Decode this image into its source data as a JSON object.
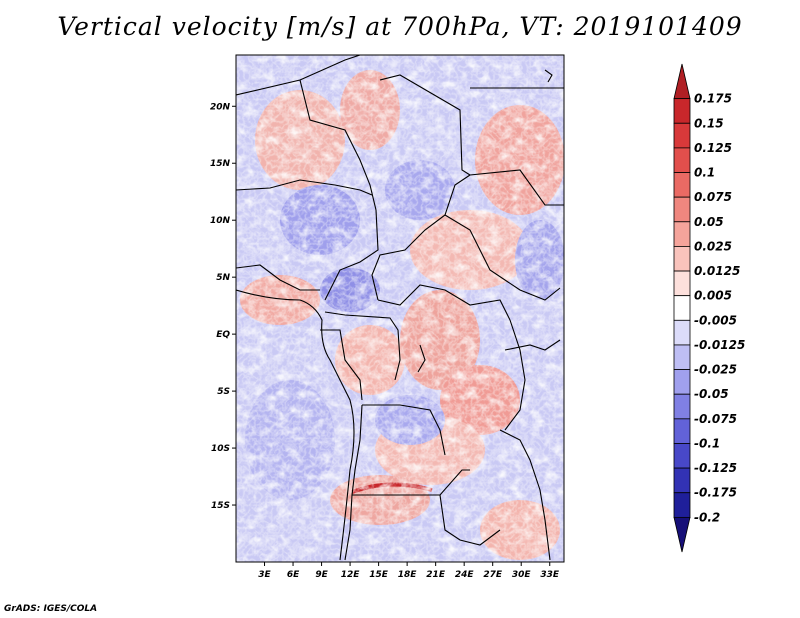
{
  "title": "Vertical velocity [m/s] at 700hPa, VT: 2019101409",
  "credit": "GrADS: IGES/COLA",
  "lat_ticks": [
    {
      "value": 20,
      "label": "20N"
    },
    {
      "value": 15,
      "label": "15N"
    },
    {
      "value": 10,
      "label": "10N"
    },
    {
      "value": 5,
      "label": "5N"
    },
    {
      "value": 0,
      "label": "EQ"
    },
    {
      "value": -5,
      "label": "5S"
    },
    {
      "value": -10,
      "label": "10S"
    },
    {
      "value": -15,
      "label": "15S"
    }
  ],
  "lon_ticks": [
    {
      "value": 3,
      "label": "3E"
    },
    {
      "value": 6,
      "label": "6E"
    },
    {
      "value": 9,
      "label": "9E"
    },
    {
      "value": 12,
      "label": "12E"
    },
    {
      "value": 15,
      "label": "15E"
    },
    {
      "value": 18,
      "label": "18E"
    },
    {
      "value": 21,
      "label": "21E"
    },
    {
      "value": 24,
      "label": "24E"
    },
    {
      "value": 27,
      "label": "27E"
    },
    {
      "value": 30,
      "label": "30E"
    },
    {
      "value": 33,
      "label": "33E"
    }
  ],
  "lon_range": [
    0,
    34.5
  ],
  "lat_range": [
    -20,
    24.5
  ],
  "colorbar": {
    "labels": [
      "0.175",
      "0.15",
      "0.125",
      "0.1",
      "0.075",
      "0.05",
      "0.025",
      "0.0125",
      "0.005",
      "-0.005",
      "-0.0125",
      "-0.025",
      "-0.05",
      "-0.075",
      "-0.1",
      "-0.125",
      "-0.175",
      "-0.2"
    ],
    "colors": [
      "#b01f24",
      "#c8272b",
      "#d8393a",
      "#e24f4c",
      "#ea6a64",
      "#f0877f",
      "#f5a49b",
      "#f9c3bc",
      "#fde0dc",
      "#ffffff",
      "#dcdcfa",
      "#bebef4",
      "#a0a0ee",
      "#8080e4",
      "#6262d8",
      "#4848c8",
      "#3232b4",
      "#1f1f9a",
      "#160f78"
    ]
  }
}
